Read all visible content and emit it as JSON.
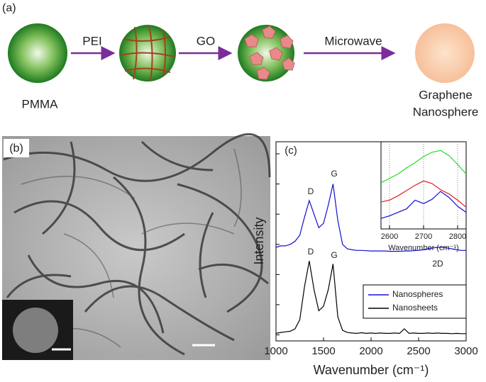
{
  "panel_a": {
    "label": "(a)",
    "steps": [
      "PEI",
      "GO",
      "Microwave"
    ],
    "start": "PMMA",
    "end": [
      "Graphene",
      "Nanosphere"
    ]
  },
  "panel_b": {
    "label": "(b)"
  },
  "chart_data": {
    "type": "line",
    "label": "(c)",
    "x": [
      1000,
      1050,
      1100,
      1150,
      1200,
      1250,
      1300,
      1350,
      1400,
      1450,
      1500,
      1550,
      1600,
      1650,
      1700,
      1750,
      1800,
      1850,
      1900,
      1950,
      2000,
      2050,
      2100,
      2150,
      2200,
      2250,
      2300,
      2350,
      2400,
      2450,
      2500,
      2550,
      2600,
      2650,
      2700,
      2750,
      2800,
      2850,
      2900,
      2950,
      3000
    ],
    "series": [
      {
        "name": "Nanospheres",
        "color": "#1010d0",
        "values": [
          2.9,
          2.95,
          2.95,
          3.0,
          3.1,
          3.3,
          3.9,
          4.45,
          4.0,
          3.55,
          3.7,
          4.3,
          5.0,
          3.8,
          3.0,
          2.85,
          2.82,
          2.8,
          2.8,
          2.79,
          2.78,
          2.78,
          2.78,
          2.78,
          2.77,
          2.77,
          2.77,
          2.78,
          2.78,
          2.79,
          2.8,
          2.82,
          2.85,
          2.88,
          2.9,
          2.9,
          2.88,
          2.85,
          2.82,
          2.8,
          2.8
        ]
      },
      {
        "name": "Nanosheets",
        "color": "#000000",
        "values": [
          0.05,
          0.08,
          0.1,
          0.12,
          0.2,
          0.5,
          1.6,
          2.45,
          1.5,
          0.8,
          0.95,
          1.5,
          2.35,
          0.6,
          0.15,
          0.08,
          0.06,
          0.05,
          0.07,
          0.05,
          0.06,
          0.05,
          0.06,
          0.05,
          0.05,
          0.06,
          0.05,
          0.2,
          0.05,
          0.06,
          0.05,
          0.05,
          0.06,
          0.05,
          0.06,
          0.05,
          0.05,
          0.04,
          0.05,
          0.04,
          0.04
        ]
      }
    ],
    "xlim": [
      1000,
      3000
    ],
    "xticks": [
      1000,
      1500,
      2000,
      2500,
      3000
    ],
    "ylim": [
      -0.2,
      6.4
    ],
    "yticks": [
      0,
      1,
      2,
      3,
      4,
      5,
      6
    ],
    "xlabel": "Wavenumber (cm⁻¹)",
    "ylabel": "Intensity",
    "annotations": [
      "D",
      "G",
      "D",
      "G",
      "2D"
    ],
    "inset": {
      "type": "line",
      "x": [
        2575,
        2600,
        2625,
        2650,
        2675,
        2700,
        2725,
        2750,
        2775,
        2800,
        2825
      ],
      "series": [
        {
          "color": "#22dd22",
          "values": [
            5.3,
            5.8,
            6.3,
            7.0,
            7.6,
            8.3,
            8.8,
            9.0,
            8.4,
            7.4,
            6.3
          ]
        },
        {
          "color": "#dd2020",
          "values": [
            3.1,
            3.3,
            3.8,
            4.4,
            5.0,
            5.5,
            5.2,
            4.5,
            4.0,
            3.3,
            2.5
          ]
        },
        {
          "color": "#1010d0",
          "values": [
            1.2,
            1.5,
            1.9,
            2.3,
            3.3,
            2.9,
            3.4,
            4.3,
            3.6,
            2.6,
            1.9
          ]
        }
      ],
      "xlim": [
        2575,
        2825
      ],
      "xticks": [
        2600,
        2700,
        2800
      ],
      "ylim": [
        0,
        10
      ],
      "xlabel": "Wavenumber (cm⁻¹)",
      "grid": true
    }
  }
}
